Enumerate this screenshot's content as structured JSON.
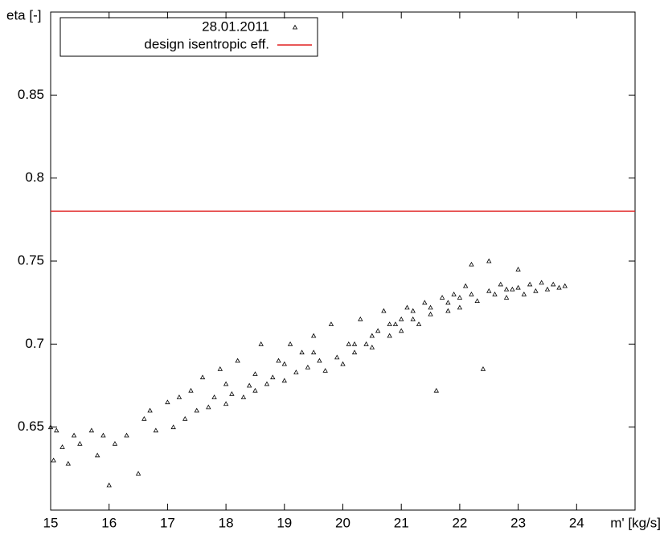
{
  "chart_data": {
    "type": "scatter",
    "xlabel": "m' [kg/s]",
    "ylabel": "eta [-]",
    "xlim": [
      15,
      25
    ],
    "ylim": [
      0.6,
      0.9
    ],
    "xticks": [
      15,
      16,
      17,
      18,
      19,
      20,
      21,
      22,
      23,
      24
    ],
    "yticks": [
      0.65,
      0.7,
      0.75,
      0.8,
      0.85
    ],
    "legend": "top-left",
    "series": [
      {
        "name": "28.01.2011",
        "color": "#000000",
        "x": [
          15.0,
          15.05,
          15.1,
          15.2,
          15.3,
          15.4,
          15.5,
          15.7,
          15.8,
          15.9,
          16.0,
          16.1,
          16.3,
          16.5,
          16.6,
          16.7,
          16.8,
          17.0,
          17.1,
          17.2,
          17.3,
          17.4,
          17.5,
          17.6,
          17.7,
          17.8,
          17.9,
          18.0,
          18.1,
          18.2,
          18.3,
          18.4,
          18.5,
          18.6,
          18.7,
          18.8,
          18.9,
          19.0,
          19.1,
          19.2,
          19.3,
          19.4,
          19.5,
          19.6,
          19.7,
          19.8,
          19.9,
          20.0,
          20.1,
          20.2,
          20.3,
          20.4,
          20.5,
          20.6,
          20.7,
          20.8,
          20.9,
          21.0,
          21.1,
          21.2,
          21.3,
          21.4,
          21.5,
          21.6,
          21.7,
          21.8,
          21.9,
          22.0,
          22.1,
          22.2,
          22.3,
          22.4,
          22.5,
          22.6,
          22.7,
          22.8,
          22.9,
          23.0,
          23.1,
          23.2,
          23.3,
          23.4,
          23.5,
          23.6,
          23.7,
          23.8,
          20.5,
          21.0,
          21.5,
          22.0,
          22.5,
          23.0,
          19.5,
          19.0,
          18.5,
          18.0,
          21.2,
          21.8,
          22.2,
          22.8,
          20.8,
          20.2
        ],
        "y": [
          0.65,
          0.63,
          0.648,
          0.638,
          0.628,
          0.645,
          0.64,
          0.648,
          0.633,
          0.645,
          0.615,
          0.64,
          0.645,
          0.622,
          0.655,
          0.66,
          0.648,
          0.665,
          0.65,
          0.668,
          0.655,
          0.672,
          0.66,
          0.68,
          0.662,
          0.668,
          0.685,
          0.664,
          0.67,
          0.69,
          0.668,
          0.675,
          0.672,
          0.7,
          0.676,
          0.68,
          0.69,
          0.678,
          0.7,
          0.683,
          0.695,
          0.686,
          0.705,
          0.69,
          0.684,
          0.712,
          0.692,
          0.688,
          0.7,
          0.695,
          0.715,
          0.7,
          0.698,
          0.708,
          0.72,
          0.705,
          0.712,
          0.708,
          0.722,
          0.715,
          0.712,
          0.725,
          0.718,
          0.672,
          0.728,
          0.72,
          0.73,
          0.722,
          0.735,
          0.748,
          0.726,
          0.685,
          0.75,
          0.73,
          0.736,
          0.728,
          0.733,
          0.745,
          0.73,
          0.736,
          0.732,
          0.737,
          0.733,
          0.736,
          0.734,
          0.735,
          0.705,
          0.715,
          0.722,
          0.728,
          0.732,
          0.734,
          0.695,
          0.688,
          0.682,
          0.676,
          0.72,
          0.725,
          0.73,
          0.733,
          0.712,
          0.7
        ]
      }
    ],
    "reference_line": {
      "name": "design isentropic eff.",
      "value": 0.78,
      "color": "#e02020"
    }
  }
}
